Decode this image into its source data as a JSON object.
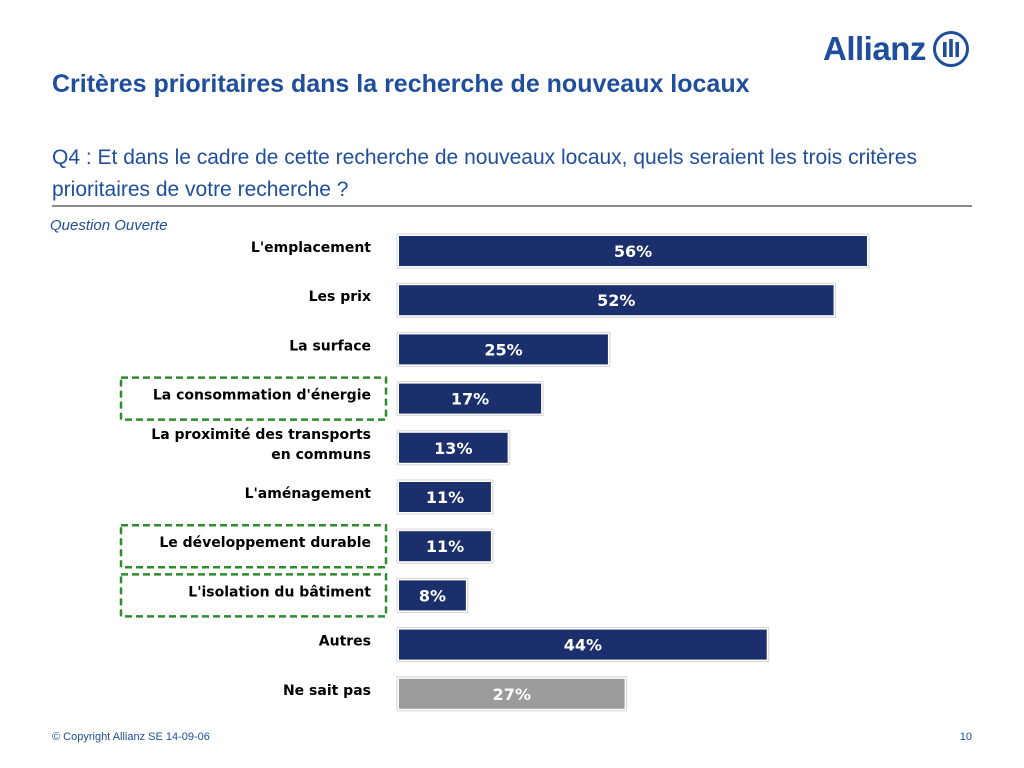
{
  "brand": {
    "name": "Allianz"
  },
  "slide": {
    "title": "Critères prioritaires dans la recherche de nouveaux locaux",
    "question": "Q4 : Et dans le cadre de cette recherche de nouveaux locaux, quels seraient les trois critères prioritaires de votre recherche ?",
    "subtitle": "Question Ouverte",
    "copyright": "© Copyright Allianz SE 14-09-06",
    "page_number": "10"
  },
  "colors": {
    "brand_blue": "#1f4e9c",
    "bar_primary": "#1a2f6b",
    "bar_secondary": "#9b9b9b",
    "highlight_border": "#2e8b2e"
  },
  "chart_data": {
    "type": "bar",
    "orientation": "horizontal",
    "categories": [
      [
        "L'emplacement"
      ],
      [
        "Les prix"
      ],
      [
        "La surface"
      ],
      [
        "La consommation d'énergie"
      ],
      [
        "La proximité des transports",
        "en communs"
      ],
      [
        "L'aménagement"
      ],
      [
        "Le développement durable"
      ],
      [
        "L'isolation du bâtiment"
      ],
      [
        "Autres"
      ],
      [
        "Ne sait pas"
      ]
    ],
    "values": [
      56,
      52,
      25,
      17,
      13,
      11,
      11,
      8,
      44,
      27
    ],
    "value_labels": [
      "56%",
      "52%",
      "25%",
      "17%",
      "13%",
      "11%",
      "11%",
      "8%",
      "44%",
      "27%"
    ],
    "bar_colors": [
      "#1a2f6b",
      "#1a2f6b",
      "#1a2f6b",
      "#1a2f6b",
      "#1a2f6b",
      "#1a2f6b",
      "#1a2f6b",
      "#1a2f6b",
      "#1a2f6b",
      "#9b9b9b"
    ],
    "highlighted": [
      false,
      false,
      false,
      true,
      false,
      false,
      true,
      true,
      false,
      false
    ],
    "xlim": [
      0,
      56
    ],
    "unit": "%"
  }
}
